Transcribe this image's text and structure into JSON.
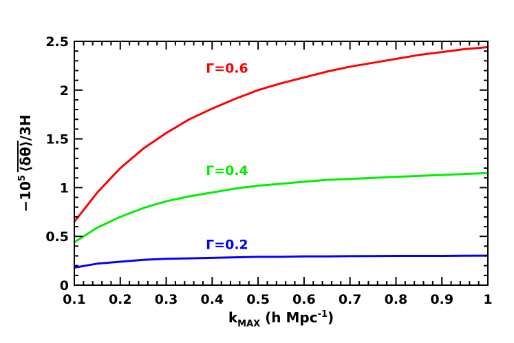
{
  "chart_data": {
    "type": "line",
    "xlabel_main": "k",
    "xlabel_sub": "MAX",
    "xlabel_rest": " (h Mpc",
    "xlabel_sup": "-1",
    "xlabel_close": ")",
    "ylabel_prefix": "−10",
    "ylabel_sup": "5",
    "ylabel_mid": "⟨δθ⟩",
    "ylabel_suffix": "/3H",
    "xlim": [
      0.1,
      1.0
    ],
    "ylim": [
      0,
      2.5
    ],
    "x_ticks": [
      {
        "v": 0.1,
        "label": "0.1"
      },
      {
        "v": 0.2,
        "label": "0.2"
      },
      {
        "v": 0.3,
        "label": "0.3"
      },
      {
        "v": 0.4,
        "label": "0.4"
      },
      {
        "v": 0.5,
        "label": "0.5"
      },
      {
        "v": 0.6,
        "label": "0.6"
      },
      {
        "v": 0.7,
        "label": "0.7"
      },
      {
        "v": 0.8,
        "label": "0.8"
      },
      {
        "v": 0.9,
        "label": "0.9"
      },
      {
        "v": 1.0,
        "label": "1"
      }
    ],
    "y_ticks": [
      {
        "v": 0,
        "label": "0"
      },
      {
        "v": 0.5,
        "label": "0.5"
      },
      {
        "v": 1.0,
        "label": "1"
      },
      {
        "v": 1.5,
        "label": "1.5"
      },
      {
        "v": 2.0,
        "label": "2"
      },
      {
        "v": 2.5,
        "label": "2.5"
      }
    ],
    "grid": false,
    "series": [
      {
        "name": "Γ=0.6",
        "color": "#ff0000",
        "label_at": [
          0.35,
          2.18
        ],
        "x": [
          0.1,
          0.15,
          0.2,
          0.25,
          0.3,
          0.35,
          0.4,
          0.45,
          0.5,
          0.55,
          0.6,
          0.65,
          0.7,
          0.75,
          0.8,
          0.85,
          0.9,
          0.95,
          1.0
        ],
        "y": [
          0.65,
          0.95,
          1.2,
          1.4,
          1.56,
          1.7,
          1.81,
          1.91,
          2.0,
          2.07,
          2.13,
          2.19,
          2.24,
          2.28,
          2.32,
          2.36,
          2.39,
          2.42,
          2.44
        ]
      },
      {
        "name": "Γ=0.4",
        "color": "#00ee00",
        "label_at": [
          0.35,
          1.13
        ],
        "x": [
          0.1,
          0.15,
          0.2,
          0.25,
          0.3,
          0.35,
          0.4,
          0.45,
          0.5,
          0.55,
          0.6,
          0.65,
          0.7,
          0.75,
          0.8,
          0.85,
          0.9,
          0.95,
          1.0
        ],
        "y": [
          0.44,
          0.59,
          0.7,
          0.79,
          0.86,
          0.91,
          0.95,
          0.99,
          1.02,
          1.04,
          1.06,
          1.08,
          1.09,
          1.1,
          1.11,
          1.12,
          1.13,
          1.14,
          1.15
        ]
      },
      {
        "name": "Γ=0.2",
        "color": "#0000ff",
        "label_at": [
          0.35,
          0.37
        ],
        "x": [
          0.1,
          0.15,
          0.2,
          0.25,
          0.3,
          0.35,
          0.4,
          0.45,
          0.5,
          0.55,
          0.6,
          0.65,
          0.7,
          0.75,
          0.8,
          0.85,
          0.9,
          0.95,
          1.0
        ],
        "y": [
          0.18,
          0.22,
          0.24,
          0.26,
          0.27,
          0.275,
          0.28,
          0.285,
          0.29,
          0.29,
          0.295,
          0.295,
          0.297,
          0.298,
          0.3,
          0.3,
          0.3,
          0.302,
          0.303
        ]
      }
    ]
  }
}
